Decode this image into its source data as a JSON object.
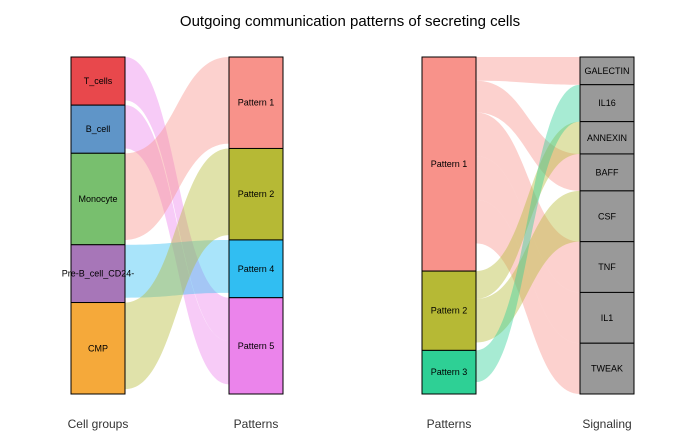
{
  "title": "Outgoing communication patterns of secreting cells",
  "chart_data": [
    {
      "type": "alluvial",
      "left_axis_label": "Cell groups",
      "right_axis_label": "Patterns",
      "left_nodes": [
        {
          "name": "T_cells",
          "color": "#E8484C",
          "value": 0.5
        },
        {
          "name": "B_cell",
          "color": "#5F95C8",
          "value": 0.5
        },
        {
          "name": "Monocyte",
          "color": "#78BF6E",
          "value": 0.95
        },
        {
          "name": "Pre-B_cell_CD24-",
          "color": "#A776B8",
          "value": 0.6
        },
        {
          "name": "CMP",
          "color": "#F5A93A",
          "value": 0.95
        }
      ],
      "right_nodes": [
        {
          "name": "Pattern 1",
          "color": "#F8928A",
          "value": 0.95
        },
        {
          "name": "Pattern 2",
          "color": "#B6B935",
          "value": 0.95
        },
        {
          "name": "Pattern 4",
          "color": "#31BEF2",
          "value": 0.6
        },
        {
          "name": "Pattern 5",
          "color": "#EB84EB",
          "value": 1.0
        }
      ],
      "flows": [
        {
          "source": "T_cells",
          "target": "Pattern 5",
          "value": 0.45,
          "color": "#EB84EB"
        },
        {
          "source": "B_cell",
          "target": "Pattern 5",
          "value": 0.45,
          "color": "#EB84EB"
        },
        {
          "source": "Monocyte",
          "target": "Pattern 1",
          "value": 0.9,
          "color": "#F8928A"
        },
        {
          "source": "Pre-B_cell_CD24-",
          "target": "Pattern 4",
          "value": 0.55,
          "color": "#31BEF2"
        },
        {
          "source": "CMP",
          "target": "Pattern 2",
          "value": 0.9,
          "color": "#B6B935"
        }
      ]
    },
    {
      "type": "alluvial",
      "left_axis_label": "Patterns",
      "right_axis_label": "Signaling",
      "left_nodes": [
        {
          "name": "Pattern 1",
          "color": "#F8928A",
          "value": 2.7
        },
        {
          "name": "Pattern 2",
          "color": "#B6B935",
          "value": 1.0
        },
        {
          "name": "Pattern 3",
          "color": "#2ED095",
          "value": 0.55
        }
      ],
      "right_nodes": [
        {
          "name": "GALECTIN",
          "color": "#999999",
          "value": 0.3
        },
        {
          "name": "IL16",
          "color": "#999999",
          "value": 0.4
        },
        {
          "name": "ANNEXIN",
          "color": "#999999",
          "value": 0.35
        },
        {
          "name": "BAFF",
          "color": "#999999",
          "value": 0.4
        },
        {
          "name": "CSF",
          "color": "#999999",
          "value": 0.55
        },
        {
          "name": "TNF",
          "color": "#999999",
          "value": 0.55
        },
        {
          "name": "IL1",
          "color": "#999999",
          "value": 0.55
        },
        {
          "name": "TWEAK",
          "color": "#999999",
          "value": 0.55
        }
      ],
      "flows": [
        {
          "source": "Pattern 1",
          "target": "GALECTIN",
          "value": 0.3,
          "color": "#F8928A"
        },
        {
          "source": "Pattern 1",
          "target": "BAFF",
          "value": 0.4,
          "color": "#F8928A"
        },
        {
          "source": "Pattern 1",
          "target": "TNF",
          "value": 0.55,
          "color": "#F8928A"
        },
        {
          "source": "Pattern 1",
          "target": "IL1",
          "value": 0.55,
          "color": "#F8928A"
        },
        {
          "source": "Pattern 1",
          "target": "TWEAK",
          "value": 0.55,
          "color": "#F8928A"
        },
        {
          "source": "Pattern 2",
          "target": "ANNEXIN",
          "value": 0.35,
          "color": "#B6B935"
        },
        {
          "source": "Pattern 2",
          "target": "CSF",
          "value": 0.55,
          "color": "#B6B935"
        },
        {
          "source": "Pattern 3",
          "target": "IL16",
          "value": 0.4,
          "color": "#2ED095"
        }
      ]
    }
  ]
}
